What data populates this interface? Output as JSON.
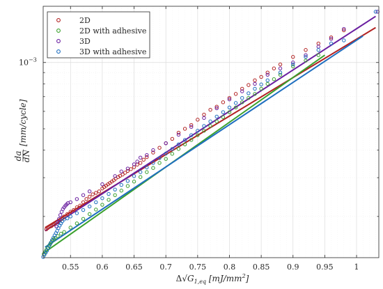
{
  "chart_data": {
    "type": "scatter",
    "title": "",
    "xlabel": "Δ√G_{1,eq} [mJ/mm²]",
    "xlabel_parts": {
      "prefix": "Δ√",
      "var": "G",
      "sub": "1,eq",
      "units": " [mJ/mm",
      "sup": "2",
      "close": "]"
    },
    "ylabel": "da/dN [mm/cycle]",
    "ylabel_parts": {
      "num": "da",
      "den": "dN",
      "units": "[mm/cycle]"
    },
    "y_scale": "log",
    "xlim": [
      0.507,
      1.035
    ],
    "ylim": [
      0.00013,
      0.0018
    ],
    "grid": true,
    "legend_position": "top-left",
    "x_ticks": [
      0.55,
      0.6,
      0.65,
      0.7,
      0.75,
      0.8,
      0.85,
      0.9,
      0.95,
      1.0
    ],
    "x_tick_labels": [
      "0.55",
      "0.6",
      "0.65",
      "0.7",
      "0.75",
      "0.8",
      "0.85",
      "0.9",
      "0.95",
      "1"
    ],
    "y_tick_label_exp": {
      "base": "10",
      "exponent": "−3",
      "value": 0.001
    },
    "series": [
      {
        "name": "2D",
        "color": "#b22222",
        "fit": {
          "x": [
            0.51,
            1.03
          ],
          "y": [
            0.000178,
            0.00144
          ]
        },
        "points": [
          [
            0.512,
            0.000175
          ],
          [
            0.514,
            0.000177
          ],
          [
            0.516,
            0.000179
          ],
          [
            0.518,
            0.00018
          ],
          [
            0.52,
            0.000181
          ],
          [
            0.522,
            0.000183
          ],
          [
            0.524,
            0.000184
          ],
          [
            0.526,
            0.000186
          ],
          [
            0.528,
            0.000188
          ],
          [
            0.53,
            0.000189
          ],
          [
            0.532,
            0.000191
          ],
          [
            0.534,
            0.000193
          ],
          [
            0.536,
            0.000195
          ],
          [
            0.538,
            0.000197
          ],
          [
            0.54,
            0.0002
          ],
          [
            0.545,
            0.000205
          ],
          [
            0.55,
            0.00021
          ],
          [
            0.555,
            0.000214
          ],
          [
            0.56,
            0.00022
          ],
          [
            0.565,
            0.000224
          ],
          [
            0.57,
            0.000232
          ],
          [
            0.575,
            0.00024
          ],
          [
            0.58,
            0.000246
          ],
          [
            0.585,
            0.000252
          ],
          [
            0.59,
            0.000256
          ],
          [
            0.595,
            0.00026
          ],
          [
            0.6,
            0.000268
          ],
          [
            0.603,
            0.000272
          ],
          [
            0.606,
            0.000276
          ],
          [
            0.609,
            0.00028
          ],
          [
            0.612,
            0.000284
          ],
          [
            0.615,
            0.000288
          ],
          [
            0.618,
            0.000292
          ],
          [
            0.621,
            0.000297
          ],
          [
            0.625,
            0.000302
          ],
          [
            0.628,
            0.000306
          ],
          [
            0.632,
            0.00031
          ],
          [
            0.636,
            0.000316
          ],
          [
            0.64,
            0.000322
          ],
          [
            0.645,
            0.000328
          ],
          [
            0.65,
            0.000335
          ],
          [
            0.655,
            0.000344
          ],
          [
            0.66,
            0.00035
          ],
          [
            0.665,
            0.000362
          ],
          [
            0.67,
            0.000372
          ],
          [
            0.68,
            0.00039
          ],
          [
            0.69,
            0.00041
          ],
          [
            0.7,
            0.00043
          ],
          [
            0.71,
            0.00045
          ],
          [
            0.72,
            0.00048
          ],
          [
            0.73,
            0.0005
          ],
          [
            0.74,
            0.00052
          ],
          [
            0.75,
            0.00055
          ],
          [
            0.76,
            0.00058
          ],
          [
            0.77,
            0.00061
          ],
          [
            0.78,
            0.00063
          ],
          [
            0.79,
            0.00066
          ],
          [
            0.8,
            0.00069
          ],
          [
            0.81,
            0.00072
          ],
          [
            0.82,
            0.00076
          ],
          [
            0.83,
            0.00079
          ],
          [
            0.84,
            0.00083
          ],
          [
            0.85,
            0.00086
          ],
          [
            0.86,
            0.0009
          ],
          [
            0.87,
            0.00094
          ],
          [
            0.88,
            0.00098
          ],
          [
            0.9,
            0.00106
          ],
          [
            0.92,
            0.00114
          ],
          [
            0.94,
            0.00122
          ],
          [
            0.96,
            0.0013
          ],
          [
            0.98,
            0.0014
          ]
        ]
      },
      {
        "name": "2D with adhesive",
        "color": "#3aa02c",
        "fit": {
          "x": [
            0.507,
            0.95
          ],
          "y": [
            0.000136,
            0.00108
          ]
        },
        "points": [
          [
            0.508,
            0.000135
          ],
          [
            0.51,
            0.000138
          ],
          [
            0.512,
            0.000141
          ],
          [
            0.514,
            0.000144
          ],
          [
            0.516,
            0.000147
          ],
          [
            0.518,
            0.00015
          ],
          [
            0.52,
            0.000153
          ],
          [
            0.522,
            0.000156
          ],
          [
            0.524,
            0.000158
          ],
          [
            0.526,
            0.00016
          ],
          [
            0.53,
            0.000163
          ],
          [
            0.535,
            0.000167
          ],
          [
            0.54,
            0.00017
          ],
          [
            0.55,
            0.000178
          ],
          [
            0.56,
            0.000186
          ],
          [
            0.57,
            0.000195
          ],
          [
            0.58,
            0.000205
          ],
          [
            0.59,
            0.000215
          ],
          [
            0.6,
            0.000226
          ],
          [
            0.61,
            0.000238
          ],
          [
            0.62,
            0.00025
          ],
          [
            0.63,
            0.000262
          ],
          [
            0.64,
            0.000275
          ],
          [
            0.65,
            0.000288
          ],
          [
            0.66,
            0.000302
          ],
          [
            0.67,
            0.000318
          ],
          [
            0.68,
            0.000332
          ],
          [
            0.69,
            0.00035
          ],
          [
            0.7,
            0.000365
          ],
          [
            0.71,
            0.000385
          ],
          [
            0.72,
            0.000405
          ],
          [
            0.73,
            0.000425
          ],
          [
            0.74,
            0.000445
          ],
          [
            0.75,
            0.000468
          ],
          [
            0.76,
            0.00049
          ],
          [
            0.77,
            0.000515
          ],
          [
            0.78,
            0.00054
          ],
          [
            0.79,
            0.000565
          ],
          [
            0.8,
            0.000595
          ],
          [
            0.81,
            0.000625
          ],
          [
            0.82,
            0.00066
          ],
          [
            0.83,
            0.00069
          ],
          [
            0.84,
            0.00072
          ],
          [
            0.85,
            0.00076
          ],
          [
            0.86,
            0.0008
          ],
          [
            0.87,
            0.00084
          ],
          [
            0.88,
            0.00088
          ],
          [
            0.9,
            0.00096
          ],
          [
            0.92,
            0.00102
          ],
          [
            0.94,
            0.00108
          ]
        ]
      },
      {
        "name": "3D",
        "color": "#6a1fa0",
        "fit": {
          "x": [
            0.51,
            1.03
          ],
          "y": [
            0.000172,
            0.00162
          ]
        },
        "points": [
          [
            0.528,
            0.00018
          ],
          [
            0.53,
            0.000188
          ],
          [
            0.532,
            0.000195
          ],
          [
            0.534,
            0.000203
          ],
          [
            0.536,
            0.00021
          ],
          [
            0.538,
            0.000216
          ],
          [
            0.54,
            0.00022
          ],
          [
            0.542,
            0.000224
          ],
          [
            0.544,
            0.000227
          ],
          [
            0.546,
            0.00023
          ],
          [
            0.55,
            0.000232
          ],
          [
            0.56,
            0.00024
          ],
          [
            0.57,
            0.00025
          ],
          [
            0.58,
            0.00026
          ],
          [
            0.6,
            0.00028
          ],
          [
            0.62,
            0.000305
          ],
          [
            0.63,
            0.00032
          ],
          [
            0.64,
            0.00033
          ],
          [
            0.65,
            0.000345
          ],
          [
            0.655,
            0.000355
          ],
          [
            0.66,
            0.00037
          ],
          [
            0.67,
            0.00038
          ],
          [
            0.68,
            0.0004
          ],
          [
            0.7,
            0.00043
          ],
          [
            0.72,
            0.00047
          ],
          [
            0.74,
            0.00051
          ],
          [
            0.76,
            0.00056
          ],
          [
            0.78,
            0.00062
          ],
          [
            0.8,
            0.00068
          ],
          [
            0.82,
            0.00074
          ],
          [
            0.84,
            0.0008
          ],
          [
            0.86,
            0.00088
          ],
          [
            0.88,
            0.00094
          ],
          [
            0.9,
            0.001
          ],
          [
            0.92,
            0.00108
          ],
          [
            0.94,
            0.00118
          ],
          [
            0.96,
            0.00128
          ],
          [
            0.98,
            0.00142
          ],
          [
            1.033,
            0.0017
          ]
        ]
      },
      {
        "name": "3D with adhesive",
        "color": "#1f6fc0",
        "fit": {
          "x": [
            0.51,
            1.01
          ],
          "y": [
            0.000145,
            0.00132
          ]
        },
        "points": [
          [
            0.507,
            0.000131
          ],
          [
            0.509,
            0.000134
          ],
          [
            0.511,
            0.000137
          ],
          [
            0.513,
            0.00014
          ],
          [
            0.515,
            0.000144
          ],
          [
            0.517,
            0.000148
          ],
          [
            0.519,
            0.000152
          ],
          [
            0.521,
            0.000156
          ],
          [
            0.523,
            0.00016
          ],
          [
            0.525,
            0.000164
          ],
          [
            0.527,
            0.000168
          ],
          [
            0.529,
            0.000172
          ],
          [
            0.531,
            0.000177
          ],
          [
            0.533,
            0.000182
          ],
          [
            0.535,
            0.000186
          ],
          [
            0.537,
            0.00019
          ],
          [
            0.54,
            0.000194
          ],
          [
            0.545,
            0.000196
          ],
          [
            0.55,
            0.0002
          ],
          [
            0.56,
            0.000207
          ],
          [
            0.57,
            0.000214
          ],
          [
            0.58,
            0.000222
          ],
          [
            0.59,
            0.000232
          ],
          [
            0.6,
            0.000242
          ],
          [
            0.61,
            0.000253
          ],
          [
            0.62,
            0.000265
          ],
          [
            0.63,
            0.000278
          ],
          [
            0.64,
            0.00029
          ],
          [
            0.65,
            0.000305
          ],
          [
            0.66,
            0.000318
          ],
          [
            0.67,
            0.000334
          ],
          [
            0.68,
            0.00035
          ],
          [
            0.69,
            0.000368
          ],
          [
            0.7,
            0.000386
          ],
          [
            0.71,
            0.000405
          ],
          [
            0.72,
            0.000425
          ],
          [
            0.73,
            0.000445
          ],
          [
            0.74,
            0.000468
          ],
          [
            0.75,
            0.00049
          ],
          [
            0.76,
            0.000515
          ],
          [
            0.77,
            0.00054
          ],
          [
            0.78,
            0.000568
          ],
          [
            0.79,
            0.000595
          ],
          [
            0.8,
            0.000625
          ],
          [
            0.81,
            0.000655
          ],
          [
            0.82,
            0.00069
          ],
          [
            0.83,
            0.000725
          ],
          [
            0.84,
            0.00076
          ],
          [
            0.85,
            0.000795
          ],
          [
            0.86,
            0.00083
          ],
          [
            0.88,
            0.0009
          ],
          [
            0.9,
            0.00098
          ],
          [
            0.92,
            0.00106
          ],
          [
            0.94,
            0.00114
          ],
          [
            0.96,
            0.00122
          ],
          [
            0.98,
            0.00126
          ],
          [
            1.03,
            0.0017
          ]
        ]
      }
    ]
  }
}
